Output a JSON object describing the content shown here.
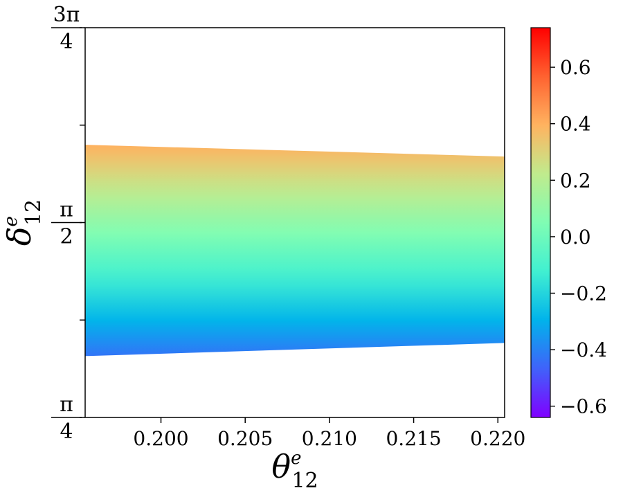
{
  "chart_data": {
    "type": "heatmap",
    "title": "",
    "xlabel": {
      "base": "θ",
      "sup": "e",
      "sub": "12"
    },
    "ylabel": {
      "base": "δ",
      "sup": "e",
      "sub": "12"
    },
    "xlim": [
      0.1955,
      0.2204
    ],
    "ylim": [
      0.7854,
      2.3562
    ],
    "x_ticks": [
      {
        "value": 0.2,
        "label": "0.200"
      },
      {
        "value": 0.205,
        "label": "0.205"
      },
      {
        "value": 0.21,
        "label": "0.210"
      },
      {
        "value": 0.215,
        "label": "0.215"
      },
      {
        "value": 0.22,
        "label": "0.220"
      }
    ],
    "y_ticks": [
      {
        "value": 0.7854,
        "num": "π",
        "den": "4"
      },
      {
        "value": 1.1781,
        "num": "",
        "den": ""
      },
      {
        "value": 1.5708,
        "num": "π",
        "den": "2"
      },
      {
        "value": 1.9635,
        "num": "",
        "den": ""
      },
      {
        "value": 2.3562,
        "num": "3π",
        "den": "4"
      }
    ],
    "region": {
      "x": [
        0.1955,
        0.2204
      ],
      "upper_y": [
        1.8843,
        1.837
      ],
      "lower y": [
        1.0328,
        1.0856
      ],
      "value_at_upper": 0.4,
      "value_at_lower": -0.43
    },
    "colorbar": {
      "range": [
        -0.64,
        0.74
      ],
      "ticks": [
        -0.6,
        -0.4,
        -0.2,
        0.0,
        0.2,
        0.4,
        0.6
      ],
      "tick_labels": [
        "−0.6",
        "−0.4",
        "−0.2",
        "0.0",
        "0.2",
        "0.4",
        "0.6"
      ],
      "colormap": "rainbow",
      "stops": [
        "#8000ff",
        "#4062fa",
        "#01b3eb",
        "#41f0d1",
        "#80fdb3",
        "#c0eb8d",
        "#ffb360",
        "#ff6230",
        "#ff0000"
      ]
    }
  }
}
